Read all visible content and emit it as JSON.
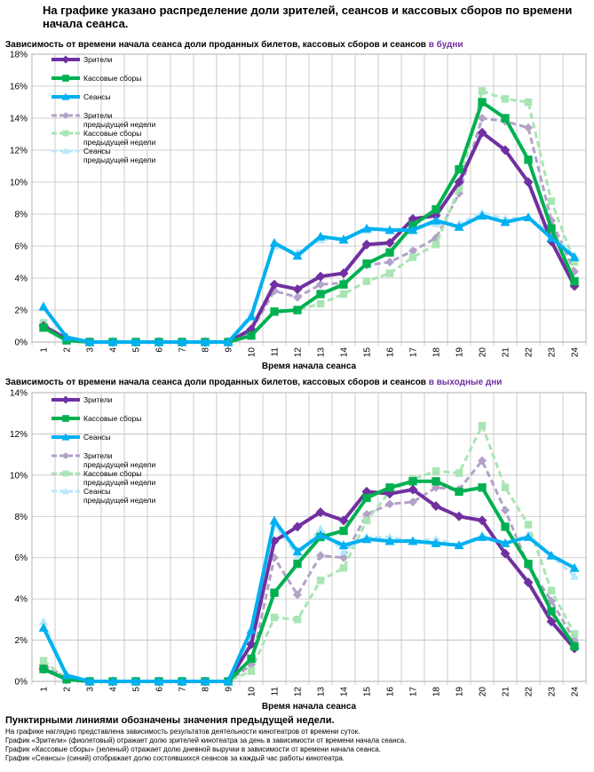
{
  "page": {
    "title": "На графике указано распределение доли зрителей, сеансов и кассовых сборов по времени начала сеанса.",
    "footer_note": "Пунктирными линиями обозначены значения предыдущей недели.",
    "footer_lines": [
      "На графике наглядно представлена зависимость результатов деятельности кинотеатров от времени суток.",
      "График «Зрители» (фиолетовый)  отражает долю зрителей кинотеатра за день в зависимости от времени  начала сеанса.",
      "График «Кассовые сборы» (зеленый) отражает долю дневной выручки в зависимости от времени начала сеанса.",
      "График «Сеансы» (синий) отображает долю состоявшихся сеансов  за каждый час работы кинотеатра."
    ]
  },
  "chart_data": [
    {
      "type": "line",
      "title": "Зависимость от времени начала сеанса доли проданных билетов, кассовых сборов и сеансов ",
      "title_accent": "в будни",
      "xlabel": "Время начала сеанса",
      "ylabel": "",
      "ylim": [
        0,
        18
      ],
      "ytick_step": 2,
      "yticks": [
        "0%",
        "2%",
        "4%",
        "6%",
        "8%",
        "10%",
        "12%",
        "14%",
        "16%",
        "18%"
      ],
      "categories": [
        "1",
        "2",
        "3",
        "4",
        "5",
        "6",
        "7",
        "8",
        "9",
        "10",
        "11",
        "12",
        "13",
        "14",
        "15",
        "16",
        "17",
        "18",
        "19",
        "20",
        "21",
        "22",
        "23",
        "24"
      ],
      "grid": true,
      "legend": "top-left",
      "series": [
        {
          "name": "Зрители",
          "color": "#7030A0",
          "dashed": false,
          "marker": "diamond",
          "values": [
            1.0,
            0.2,
            0,
            0,
            0,
            0,
            0,
            0,
            0,
            0.8,
            3.6,
            3.3,
            4.1,
            4.3,
            6.1,
            6.2,
            7.7,
            7.9,
            10.0,
            13.1,
            12.0,
            10.0,
            6.3,
            3.5
          ]
        },
        {
          "name": "Кассовые сборы",
          "color": "#00B050",
          "dashed": false,
          "marker": "square",
          "values": [
            0.9,
            0.1,
            0,
            0,
            0,
            0,
            0,
            0,
            0,
            0.4,
            1.9,
            2.0,
            3.0,
            3.6,
            4.9,
            5.6,
            7.3,
            8.3,
            10.8,
            15.0,
            14.0,
            11.4,
            7.1,
            3.8
          ]
        },
        {
          "name": "Сеансы",
          "color": "#00B0F0",
          "dashed": false,
          "marker": "triangle",
          "values": [
            2.2,
            0.3,
            0,
            0,
            0,
            0,
            0,
            0,
            0,
            1.6,
            6.2,
            5.4,
            6.6,
            6.4,
            7.1,
            7.0,
            7.0,
            7.6,
            7.2,
            7.9,
            7.5,
            7.8,
            6.5,
            5.3
          ]
        },
        {
          "name": "Зрители\nпредыдущей недели",
          "color": "#B3A2C7",
          "dashed": true,
          "marker": "diamond",
          "values": [
            1.1,
            0.2,
            0,
            0,
            0,
            0,
            0,
            0,
            0,
            0.7,
            3.2,
            2.8,
            3.6,
            3.7,
            4.8,
            5.0,
            5.7,
            6.5,
            9.3,
            14.0,
            13.8,
            13.4,
            7.6,
            4.4
          ]
        },
        {
          "name": "Кассовые сборы\nпредыдущей недели",
          "color": "#A9E5B4",
          "dashed": true,
          "marker": "square",
          "values": [
            1.2,
            0.1,
            0,
            0,
            0,
            0,
            0,
            0,
            0,
            0.4,
            1.9,
            2.0,
            2.4,
            3.0,
            3.8,
            4.3,
            5.3,
            6.1,
            9.6,
            15.7,
            15.2,
            15.0,
            8.8,
            5.0
          ]
        },
        {
          "name": "Сеансы\nпредыдущей недели",
          "color": "#B7E8FA",
          "dashed": true,
          "marker": "triangle",
          "values": [
            2.3,
            0.3,
            0,
            0,
            0,
            0,
            0,
            0,
            0,
            1.8,
            6.0,
            5.6,
            6.4,
            6.5,
            7.0,
            7.0,
            7.2,
            7.4,
            7.4,
            8.1,
            7.7,
            7.8,
            6.8,
            5.4
          ]
        }
      ]
    },
    {
      "type": "line",
      "title": "Зависимость от времени начала сеанса доли проданных билетов, кассовых сборов и сеансов ",
      "title_accent": "в выходные дни",
      "xlabel": "Время начала сеанса",
      "ylabel": "",
      "ylim": [
        0,
        14
      ],
      "ytick_step": 2,
      "yticks": [
        "0%",
        "2%",
        "4%",
        "6%",
        "8%",
        "10%",
        "12%",
        "14%"
      ],
      "categories": [
        "1",
        "2",
        "3",
        "4",
        "5",
        "6",
        "7",
        "8",
        "9",
        "10",
        "11",
        "12",
        "13",
        "14",
        "15",
        "16",
        "17",
        "18",
        "19",
        "20",
        "21",
        "22",
        "23",
        "24"
      ],
      "grid": true,
      "legend": "top-left",
      "series": [
        {
          "name": "Зрители",
          "color": "#7030A0",
          "dashed": false,
          "marker": "diamond",
          "values": [
            0.6,
            0.1,
            0,
            0,
            0,
            0,
            0,
            0,
            0,
            1.8,
            6.8,
            7.5,
            8.2,
            7.8,
            9.2,
            9.1,
            9.3,
            8.5,
            8.0,
            7.8,
            6.2,
            4.8,
            2.9,
            1.6
          ]
        },
        {
          "name": "Кассовые сборы",
          "color": "#00B050",
          "dashed": false,
          "marker": "square",
          "values": [
            0.6,
            0.1,
            0,
            0,
            0,
            0,
            0,
            0,
            0,
            1.1,
            4.3,
            5.7,
            7.0,
            7.3,
            8.9,
            9.4,
            9.7,
            9.7,
            9.2,
            9.4,
            7.5,
            5.7,
            3.4,
            1.7
          ]
        },
        {
          "name": "Сеансы",
          "color": "#00B0F0",
          "dashed": false,
          "marker": "triangle",
          "values": [
            2.6,
            0.3,
            0,
            0,
            0,
            0,
            0,
            0,
            0,
            2.5,
            7.8,
            6.3,
            7.1,
            6.6,
            6.9,
            6.8,
            6.8,
            6.7,
            6.6,
            7.0,
            6.7,
            7.0,
            6.1,
            5.5
          ]
        },
        {
          "name": "Зрители\nпредыдущей недели",
          "color": "#B3A2C7",
          "dashed": true,
          "marker": "diamond",
          "values": [
            0.8,
            0.2,
            0,
            0,
            0,
            0,
            0,
            0,
            0,
            0.8,
            6.0,
            4.2,
            6.1,
            6.0,
            8.1,
            8.6,
            8.7,
            9.4,
            9.3,
            10.7,
            8.3,
            5.6,
            3.9,
            2.0
          ]
        },
        {
          "name": "Кассовые сборы\nпредыдущей недели",
          "color": "#A9E5B4",
          "dashed": true,
          "marker": "square",
          "values": [
            1.0,
            0.1,
            0,
            0,
            0,
            0,
            0,
            0,
            0,
            0.5,
            3.1,
            3.0,
            4.9,
            5.5,
            7.8,
            9.2,
            9.8,
            10.2,
            10.1,
            12.4,
            9.4,
            7.6,
            4.4,
            2.3
          ]
        },
        {
          "name": "Сеансы\nпредыдущей недели",
          "color": "#B7E8FA",
          "dashed": true,
          "marker": "triangle",
          "values": [
            2.9,
            0.3,
            0,
            0,
            0,
            0,
            0,
            0,
            0,
            2.2,
            7.6,
            6.1,
            7.4,
            6.3,
            7.0,
            7.0,
            6.8,
            6.9,
            6.6,
            7.1,
            6.7,
            7.1,
            6.1,
            5.1
          ]
        }
      ]
    }
  ]
}
